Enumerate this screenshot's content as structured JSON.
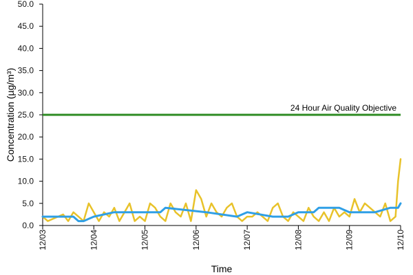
{
  "chart_data": {
    "type": "line",
    "xlabel": "Time",
    "ylabel": "Concentration (µg/m³)",
    "ylim": [
      0,
      50
    ],
    "y_ticks": [
      "0.0",
      "5.0",
      "10.0",
      "15.0",
      "20.0",
      "25.0",
      "30.0",
      "35.0",
      "40.0",
      "45.0",
      "50.0"
    ],
    "x_ticks": [
      "12/03",
      "12/04",
      "12/05",
      "12/06",
      "12/07",
      "12/08",
      "12/09",
      "12/10"
    ],
    "grid": false,
    "reference_line": {
      "label": "24 Hour Air Quality Objective",
      "value": 25,
      "color": "#2e8b22"
    },
    "series": [
      {
        "color": "#e8c22a",
        "x": [
          0,
          0.1,
          0.2,
          0.3,
          0.4,
          0.5,
          0.6,
          0.7,
          0.8,
          0.9,
          1.0,
          1.1,
          1.2,
          1.3,
          1.4,
          1.5,
          1.6,
          1.7,
          1.8,
          1.9,
          2.0,
          2.1,
          2.2,
          2.3,
          2.4,
          2.5,
          2.6,
          2.7,
          2.8,
          2.9,
          3.0,
          3.1,
          3.2,
          3.3,
          3.4,
          3.5,
          3.6,
          3.7,
          3.8,
          3.9,
          4.0,
          4.1,
          4.2,
          4.3,
          4.4,
          4.5,
          4.6,
          4.7,
          4.8,
          4.9,
          5.0,
          5.1,
          5.2,
          5.3,
          5.4,
          5.5,
          5.6,
          5.7,
          5.8,
          5.9,
          6.0,
          6.1,
          6.2,
          6.3,
          6.4,
          6.5,
          6.6,
          6.7,
          6.8,
          6.9,
          6.95,
          7.0
        ],
        "y": [
          2,
          1,
          1.5,
          2,
          2.5,
          1,
          3,
          2,
          1,
          5,
          3,
          1,
          3,
          2,
          4,
          1,
          3,
          5,
          1,
          2,
          1,
          5,
          4,
          2,
          1,
          5,
          3,
          2,
          5,
          1,
          8,
          6,
          2,
          5,
          3,
          2,
          4,
          5,
          2,
          1,
          2,
          2,
          3,
          2,
          1,
          4,
          5,
          2,
          1,
          3,
          2,
          1,
          4,
          2,
          1,
          3,
          1,
          4,
          2,
          3,
          2,
          6,
          3,
          5,
          4,
          3,
          2,
          5,
          1,
          2,
          10,
          15
        ]
      },
      {
        "color": "#2f9fe6",
        "x": [
          0,
          0.6,
          0.7,
          0.8,
          1.0,
          1.4,
          2.3,
          2.4,
          3.2,
          3.8,
          4.0,
          4.5,
          4.8,
          5.0,
          5.3,
          5.4,
          5.8,
          6.0,
          6.5,
          6.8,
          6.9,
          6.95,
          7.0
        ],
        "y": [
          2,
          2,
          1,
          1,
          2,
          3,
          3,
          4,
          3,
          2,
          3,
          2,
          2,
          3,
          3,
          4,
          4,
          3,
          3,
          4,
          4,
          4,
          5
        ]
      }
    ]
  }
}
